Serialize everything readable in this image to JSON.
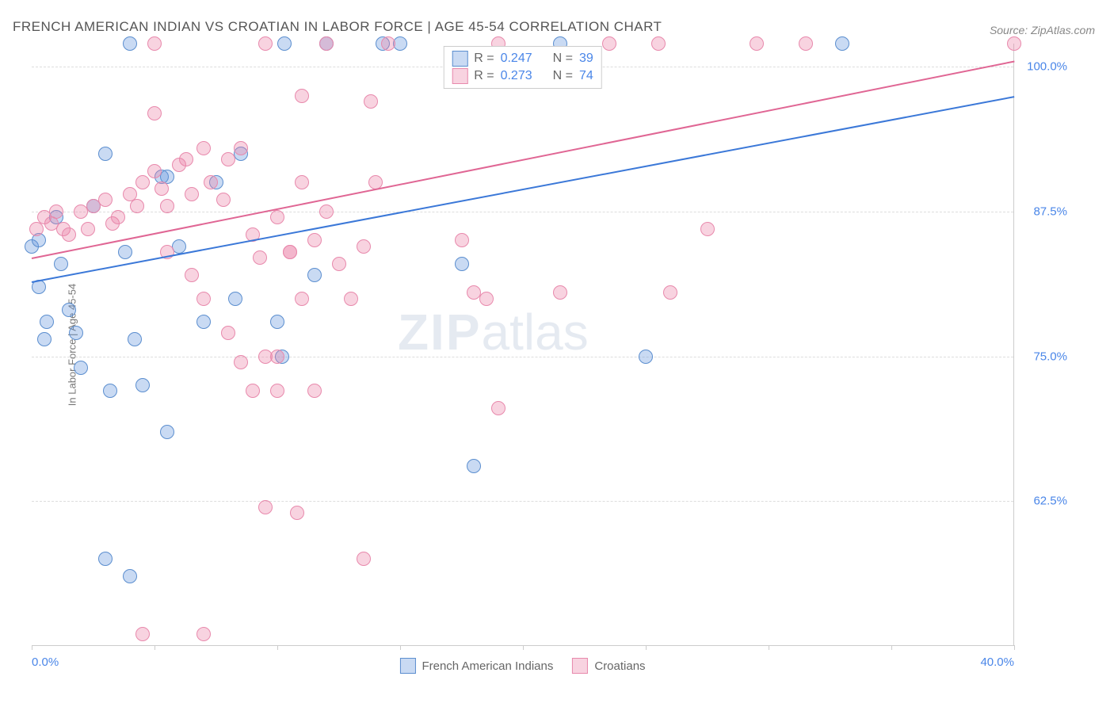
{
  "title": "FRENCH AMERICAN INDIAN VS CROATIAN IN LABOR FORCE | AGE 45-54 CORRELATION CHART",
  "source": "Source: ZipAtlas.com",
  "watermark_zip": "ZIP",
  "watermark_atlas": "atlas",
  "chart": {
    "type": "scatter",
    "ylabel": "In Labor Force | Age 45-54",
    "xlim": [
      0,
      40
    ],
    "ylim": [
      50,
      102
    ],
    "x_ticks": [
      0,
      5,
      10,
      15,
      20,
      25,
      30,
      35,
      40
    ],
    "x_tick_labels_shown": {
      "0": "0.0%",
      "40": "40.0%"
    },
    "y_ticks": [
      62.5,
      75.0,
      87.5,
      100.0
    ],
    "y_tick_labels": [
      "62.5%",
      "75.0%",
      "87.5%",
      "100.0%"
    ],
    "grid_color": "#dddddd",
    "axis_color": "#cccccc",
    "background_color": "#ffffff",
    "marker_radius": 9,
    "marker_fill_opacity": 0.35,
    "marker_stroke_width": 1.5,
    "series": [
      {
        "name": "French American Indians",
        "color_fill": "rgba(100,150,220,0.35)",
        "color_stroke": "#5b8ecf",
        "trend_color": "#3b78d8",
        "trend_start": {
          "x": 0,
          "y": 81.5
        },
        "trend_end": {
          "x": 40,
          "y": 97.5
        },
        "R": "0.247",
        "N": "39",
        "points": [
          [
            0.0,
            84.5
          ],
          [
            0.3,
            85
          ],
          [
            4.0,
            102
          ],
          [
            3.0,
            92.5
          ],
          [
            5.3,
            90.5
          ],
          [
            5.5,
            90.5
          ],
          [
            7.5,
            90
          ],
          [
            1.0,
            87
          ],
          [
            2.5,
            88
          ],
          [
            1.2,
            83
          ],
          [
            3.8,
            84
          ],
          [
            6.0,
            84.5
          ],
          [
            0.3,
            81
          ],
          [
            1.5,
            79
          ],
          [
            0.6,
            78
          ],
          [
            0.5,
            76.5
          ],
          [
            1.8,
            77
          ],
          [
            4.2,
            76.5
          ],
          [
            2.0,
            74
          ],
          [
            3.2,
            72
          ],
          [
            4.5,
            72.5
          ],
          [
            5.5,
            68.5
          ],
          [
            3.0,
            57.5
          ],
          [
            4.0,
            56
          ],
          [
            8.5,
            92.5
          ],
          [
            10.0,
            78
          ],
          [
            10.2,
            75
          ],
          [
            11.5,
            82
          ],
          [
            8.3,
            80
          ],
          [
            7.0,
            78
          ],
          [
            10.3,
            102
          ],
          [
            12.0,
            102
          ],
          [
            14.3,
            102
          ],
          [
            15.0,
            102
          ],
          [
            21.5,
            102
          ],
          [
            18.0,
            65.5
          ],
          [
            17.5,
            83
          ],
          [
            25.0,
            75
          ],
          [
            33.0,
            102
          ]
        ]
      },
      {
        "name": "Croatians",
        "color_fill": "rgba(235,130,165,0.35)",
        "color_stroke": "#e889ac",
        "trend_color": "#e06694",
        "trend_start": {
          "x": 0,
          "y": 83.5
        },
        "trend_end": {
          "x": 40,
          "y": 100.5
        },
        "R": "0.273",
        "N": "74",
        "points": [
          [
            0.2,
            86
          ],
          [
            0.5,
            87
          ],
          [
            0.8,
            86.5
          ],
          [
            1.0,
            87.5
          ],
          [
            1.3,
            86
          ],
          [
            1.5,
            85.5
          ],
          [
            2.0,
            87.5
          ],
          [
            2.3,
            86
          ],
          [
            2.5,
            88
          ],
          [
            3.0,
            88.5
          ],
          [
            3.3,
            86.5
          ],
          [
            3.5,
            87
          ],
          [
            4.0,
            89
          ],
          [
            4.3,
            88
          ],
          [
            4.5,
            90
          ],
          [
            5.0,
            91
          ],
          [
            5.3,
            89.5
          ],
          [
            5.5,
            88
          ],
          [
            6.0,
            91.5
          ],
          [
            6.3,
            92
          ],
          [
            6.5,
            89
          ],
          [
            7.0,
            93
          ],
          [
            7.3,
            90
          ],
          [
            7.8,
            88.5
          ],
          [
            8.0,
            92
          ],
          [
            8.5,
            93
          ],
          [
            9.0,
            85.5
          ],
          [
            9.3,
            83.5
          ],
          [
            10.0,
            87
          ],
          [
            10.5,
            84
          ],
          [
            11.0,
            90
          ],
          [
            11.5,
            85
          ],
          [
            12.0,
            102
          ],
          [
            5.0,
            102
          ],
          [
            9.5,
            102
          ],
          [
            14.5,
            102
          ],
          [
            19.0,
            102
          ],
          [
            23.5,
            102
          ],
          [
            25.5,
            102
          ],
          [
            29.5,
            102
          ],
          [
            31.5,
            102
          ],
          [
            40.0,
            102
          ],
          [
            5.5,
            84
          ],
          [
            6.5,
            82
          ],
          [
            7.0,
            80
          ],
          [
            8.0,
            77
          ],
          [
            8.5,
            74.5
          ],
          [
            9.0,
            72
          ],
          [
            9.5,
            75
          ],
          [
            10.0,
            72
          ],
          [
            10.5,
            84
          ],
          [
            11.0,
            80
          ],
          [
            11.5,
            72
          ],
          [
            12.0,
            87.5
          ],
          [
            13.0,
            80
          ],
          [
            13.5,
            84.5
          ],
          [
            14.0,
            90
          ],
          [
            5.0,
            96
          ],
          [
            11.0,
            97.5
          ],
          [
            13.8,
            97
          ],
          [
            17.5,
            85
          ],
          [
            18.0,
            80.5
          ],
          [
            19.0,
            70.5
          ],
          [
            18.5,
            80
          ],
          [
            21.5,
            80.5
          ],
          [
            26.0,
            80.5
          ],
          [
            27.5,
            86
          ],
          [
            9.5,
            62
          ],
          [
            10.8,
            61.5
          ],
          [
            13.5,
            57.5
          ],
          [
            4.5,
            51
          ],
          [
            7.0,
            51
          ],
          [
            10.0,
            75
          ],
          [
            12.5,
            83
          ]
        ]
      }
    ],
    "bottom_legend": [
      {
        "swatch_fill": "rgba(100,150,220,0.35)",
        "swatch_stroke": "#5b8ecf",
        "label": "French American Indians"
      },
      {
        "swatch_fill": "rgba(235,130,165,0.35)",
        "swatch_stroke": "#e889ac",
        "label": "Croatians"
      }
    ],
    "stats_legend_labels": {
      "R_label": "R =",
      "N_label": "N ="
    }
  }
}
